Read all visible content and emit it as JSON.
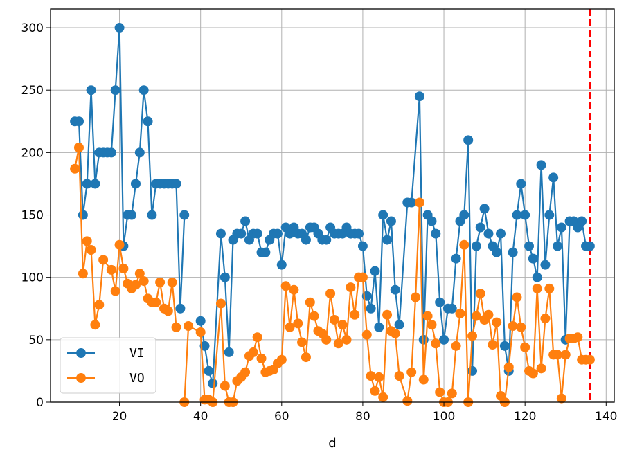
{
  "chart_data": {
    "type": "line",
    "title": "",
    "xlabel": "d",
    "ylabel": "",
    "xlim": [
      3,
      142
    ],
    "ylim": [
      0,
      315
    ],
    "xticks": [
      20,
      40,
      60,
      80,
      100,
      120,
      140
    ],
    "yticks": [
      0,
      50,
      100,
      150,
      200,
      250,
      300
    ],
    "grid": true,
    "legend_position": "lower-left",
    "vline": {
      "x": 136,
      "color": "#ff0000",
      "style": "dashed"
    },
    "series": [
      {
        "name": "VI",
        "color": "#1f77b4",
        "x": [
          9,
          10,
          11,
          12,
          13,
          14,
          15,
          16,
          17,
          18,
          19,
          20,
          21,
          22,
          23,
          24,
          25,
          26,
          27,
          28,
          29,
          30,
          31,
          32,
          33,
          34,
          35,
          36,
          37,
          40,
          41,
          42,
          43,
          45,
          46,
          47,
          48,
          49,
          50,
          51,
          52,
          53,
          54,
          55,
          56,
          57,
          58,
          59,
          60,
          61,
          62,
          63,
          64,
          65,
          66,
          67,
          68,
          69,
          70,
          71,
          72,
          73,
          74,
          75,
          76,
          77,
          78,
          79,
          80,
          81,
          82,
          83,
          84,
          85,
          86,
          87,
          88,
          89,
          91,
          92,
          94,
          95,
          96,
          97,
          98,
          99,
          100,
          101,
          102,
          103,
          104,
          105,
          106,
          107,
          108,
          109,
          110,
          111,
          112,
          113,
          114,
          115,
          116,
          117,
          118,
          119,
          120,
          121,
          122,
          123,
          124,
          125,
          126,
          127,
          128,
          129,
          130,
          131,
          132,
          133,
          134,
          135,
          136
        ],
        "y": [
          225,
          225,
          150,
          175,
          250,
          175,
          200,
          200,
          200,
          200,
          250,
          300,
          125,
          150,
          150,
          175,
          200,
          250,
          225,
          150,
          175,
          175,
          175,
          175,
          175,
          175,
          75,
          150,
          null,
          65,
          45,
          25,
          15,
          135,
          100,
          40,
          130,
          135,
          135,
          145,
          130,
          135,
          135,
          120,
          120,
          130,
          135,
          135,
          110,
          140,
          135,
          140,
          135,
          135,
          130,
          140,
          140,
          135,
          130,
          130,
          140,
          135,
          135,
          135,
          140,
          135,
          135,
          135,
          125,
          85,
          75,
          105,
          60,
          150,
          130,
          145,
          90,
          62,
          160,
          160,
          245,
          50,
          150,
          145,
          135,
          80,
          50,
          75,
          75,
          115,
          145,
          150,
          210,
          25,
          125,
          140,
          155,
          135,
          125,
          120,
          135,
          45,
          25,
          120,
          150,
          175,
          150,
          125,
          115,
          100,
          190,
          110,
          150,
          180,
          125,
          140,
          50,
          145,
          145,
          140,
          145,
          125,
          125
        ]
      },
      {
        "name": "VO",
        "color": "#ff7f0e",
        "x": [
          9,
          10,
          11,
          12,
          13,
          14,
          15,
          16,
          18,
          19,
          20,
          21,
          22,
          23,
          24,
          25,
          26,
          27,
          28,
          29,
          30,
          31,
          32,
          33,
          34,
          35,
          36,
          37,
          40,
          41,
          42,
          43,
          45,
          46,
          47,
          48,
          49,
          50,
          51,
          52,
          53,
          54,
          55,
          56,
          57,
          58,
          59,
          60,
          61,
          62,
          63,
          64,
          65,
          66,
          67,
          68,
          69,
          70,
          71,
          72,
          73,
          74,
          75,
          76,
          77,
          78,
          79,
          80,
          81,
          82,
          83,
          84,
          85,
          86,
          87,
          88,
          89,
          91,
          92,
          93,
          94,
          95,
          96,
          97,
          98,
          99,
          100,
          101,
          102,
          103,
          104,
          105,
          106,
          107,
          108,
          109,
          110,
          111,
          112,
          113,
          114,
          115,
          116,
          117,
          118,
          119,
          120,
          121,
          122,
          123,
          124,
          125,
          126,
          127,
          128,
          129,
          130,
          131,
          132,
          133,
          134,
          135,
          136
        ],
        "y": [
          187,
          204,
          103,
          129,
          122,
          62,
          78,
          114,
          106,
          89,
          126,
          107,
          95,
          91,
          94,
          103,
          97,
          83,
          80,
          80,
          96,
          75,
          73,
          96,
          60,
          null,
          0,
          61,
          56,
          2,
          2,
          0,
          79,
          13,
          0,
          0,
          17,
          20,
          24,
          37,
          40,
          52,
          35,
          24,
          25,
          26,
          31,
          34,
          93,
          60,
          90,
          63,
          48,
          36,
          80,
          69,
          57,
          55,
          50,
          87,
          66,
          47,
          62,
          50,
          92,
          70,
          100,
          100,
          54,
          21,
          9,
          20,
          4,
          70,
          57,
          55,
          21,
          1,
          24,
          84,
          160,
          18,
          69,
          62,
          47,
          8,
          0,
          0,
          7,
          45,
          71,
          126,
          0,
          53,
          69,
          87,
          66,
          70,
          46,
          64,
          5,
          0,
          28,
          61,
          84,
          60,
          44,
          25,
          23,
          91,
          27,
          67,
          91,
          38,
          38,
          3,
          38,
          51,
          51,
          52,
          34,
          34,
          34
        ]
      }
    ]
  }
}
